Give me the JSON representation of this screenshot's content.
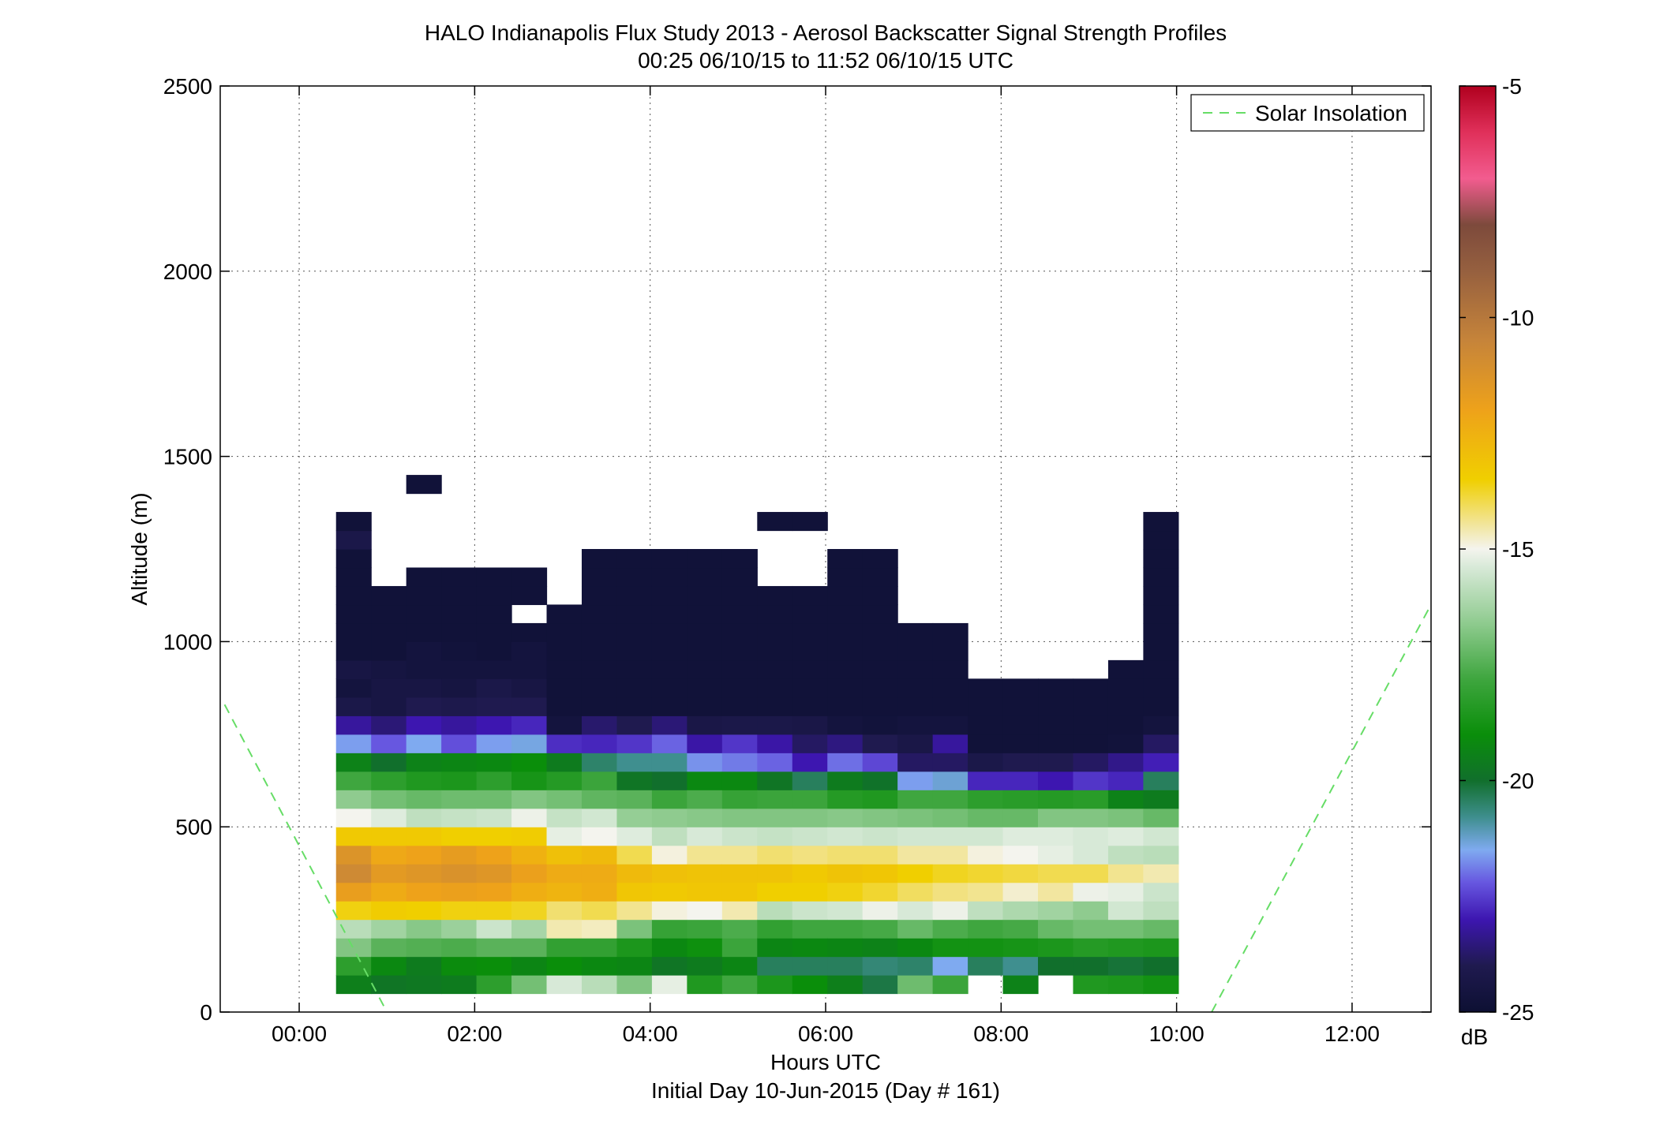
{
  "chart_data": {
    "type": "heatmap",
    "title": "HALO Indianapolis Flux Study 2013 - Aerosol Backscatter Signal Strength Profiles",
    "subtitle": "00:25 06/10/15 to 11:52 06/10/15  UTC",
    "xlabel": "Hours UTC",
    "xlabel2": "Initial Day 10-Jun-2015 (Day # 161)",
    "ylabel": "Altitude (m)",
    "x_unit": "hours UTC",
    "y_unit": "m",
    "xlim": [
      -0.9,
      12.9
    ],
    "ylim": [
      0,
      2500
    ],
    "x_ticks": [
      0,
      2,
      4,
      6,
      8,
      10,
      12
    ],
    "x_tick_labels": [
      "00:00",
      "02:00",
      "04:00",
      "06:00",
      "08:00",
      "10:00",
      "12:00"
    ],
    "y_ticks": [
      0,
      500,
      1000,
      1500,
      2000,
      2500
    ],
    "y_tick_labels": [
      "0",
      "500",
      "1000",
      "1500",
      "2000",
      "2500"
    ],
    "grid": true,
    "grid_style": "dotted",
    "legend_position": "top-right",
    "legend": [
      {
        "label": "Solar Insolation",
        "color": "#66dd66",
        "style": "dashed"
      }
    ],
    "colorbar": {
      "label": "dB",
      "min": -25,
      "max": -5,
      "ticks": [
        -25,
        -20,
        -15,
        -10,
        -5
      ],
      "tick_labels": [
        "-25",
        "-20",
        "-15",
        "-10",
        "-5"
      ],
      "stops": [
        {
          "value": -25,
          "color": "#0d1033"
        },
        {
          "value": -24,
          "color": "#1f1a4f"
        },
        {
          "value": -23,
          "color": "#3d16b0"
        },
        {
          "value": -22.2,
          "color": "#6757e0"
        },
        {
          "value": -21.5,
          "color": "#7faaf0"
        },
        {
          "value": -20.8,
          "color": "#3f8f8f"
        },
        {
          "value": -20,
          "color": "#116f2c"
        },
        {
          "value": -19,
          "color": "#0a8e0a"
        },
        {
          "value": -17.8,
          "color": "#3fa63f"
        },
        {
          "value": -16.6,
          "color": "#8fcb8f"
        },
        {
          "value": -15.4,
          "color": "#d7e9d7"
        },
        {
          "value": -15,
          "color": "#f4f4ee"
        },
        {
          "value": -14.5,
          "color": "#f2e6a0"
        },
        {
          "value": -13.5,
          "color": "#f0cf00"
        },
        {
          "value": -12,
          "color": "#eea21a"
        },
        {
          "value": -10.5,
          "color": "#c6843a"
        },
        {
          "value": -9,
          "color": "#96603f"
        },
        {
          "value": -8,
          "color": "#7d4a3c"
        },
        {
          "value": -7,
          "color": "#f25c8f"
        },
        {
          "value": -6,
          "color": "#e0305a"
        },
        {
          "value": -5,
          "color": "#b0001e"
        }
      ]
    },
    "heatmap": {
      "x_start": 0.42,
      "x_step": 0.4,
      "bin_height_m": 50,
      "bottom_m": 50,
      "columns_note": "Each profile lists dB values from the lowest altitude bin upward; null = no data.",
      "profiles": [
        [
          -19.5,
          -18.2,
          -16.8,
          -15.9,
          -13.6,
          -11.8,
          -10.8,
          -11.3,
          -13.3,
          -15.0,
          -16.6,
          -17.8,
          -19.4,
          -21.6,
          -23.2,
          -24.2,
          -24.6,
          -24.4,
          -24.8,
          -24.8,
          -24.8,
          -24.8,
          -24.8,
          -24.8,
          -24.2,
          -24.8
        ],
        [
          -19.8,
          -19.2,
          -17.4,
          -16.3,
          -13.4,
          -12.3,
          -11.6,
          -12.2,
          -13.3,
          -15.3,
          -17.0,
          -18.2,
          -20.0,
          -22.2,
          -23.6,
          -24.4,
          -24.4,
          -24.5,
          -24.8,
          -24.8,
          -24.8,
          -24.8
        ],
        [
          -19.7,
          -19.6,
          -17.5,
          -16.7,
          -13.5,
          -12.0,
          -11.4,
          -12.0,
          -13.3,
          -15.8,
          -17.2,
          -18.5,
          -19.4,
          -21.5,
          -23.0,
          -24.0,
          -24.4,
          -24.6,
          -24.6,
          -24.8,
          -24.8,
          -24.8,
          -24.8,
          null,
          null,
          null,
          null,
          -24.8
        ],
        [
          -19.6,
          -19.1,
          -17.6,
          -16.4,
          -13.6,
          -11.9,
          -11.2,
          -11.7,
          -13.5,
          -15.7,
          -17.1,
          -18.6,
          -19.3,
          -22.3,
          -23.2,
          -24.1,
          -24.5,
          -24.6,
          -24.7,
          -24.8,
          -24.8,
          -24.8,
          -24.8
        ],
        [
          -18.2,
          -19.0,
          -17.4,
          -15.6,
          -13.6,
          -12.0,
          -11.4,
          -12.0,
          -13.5,
          -15.6,
          -17.1,
          -18.2,
          -19.2,
          -21.6,
          -23.0,
          -24.0,
          -24.2,
          -24.6,
          -24.8,
          -24.8,
          -24.8,
          -24.8,
          -24.8
        ],
        [
          -17.0,
          -19.3,
          -17.4,
          -16.2,
          -13.7,
          -12.4,
          -11.9,
          -12.5,
          -13.4,
          -15.1,
          -16.8,
          -18.7,
          -19.0,
          -21.4,
          -22.8,
          -24.0,
          -24.4,
          -24.6,
          -24.6,
          -24.8,
          null,
          -24.8,
          -24.8
        ],
        [
          -15.4,
          -19.0,
          -18.1,
          -14.6,
          -14.2,
          -12.6,
          -12.3,
          -13.0,
          -15.2,
          -15.7,
          -17.0,
          -18.4,
          -19.6,
          -22.7,
          -24.6,
          -24.8,
          -24.8,
          -24.8,
          -24.8,
          -24.8,
          -24.8
        ],
        [
          -15.9,
          -19.2,
          -18.1,
          -14.7,
          -14.0,
          -12.4,
          -12.3,
          -12.8,
          -15.0,
          -15.5,
          -17.3,
          -17.9,
          -20.5,
          -22.8,
          -23.7,
          -24.8,
          -24.8,
          -24.8,
          -24.8,
          -24.8,
          -24.8,
          -24.8,
          -24.8,
          -24.8
        ],
        [
          -16.8,
          -19.3,
          -18.6,
          -16.9,
          -14.4,
          -13.2,
          -12.8,
          -14.0,
          -15.3,
          -16.5,
          -17.4,
          -19.8,
          -20.8,
          -22.6,
          -24.0,
          -24.8,
          -24.8,
          -24.8,
          -24.8,
          -24.8,
          -24.8,
          -24.8,
          -24.8,
          -24.8
        ],
        [
          -15.2,
          -19.8,
          -19.2,
          -18.0,
          -14.9,
          -13.3,
          -13.0,
          -14.9,
          -15.8,
          -16.6,
          -17.9,
          -20.0,
          -20.8,
          -22.1,
          -23.6,
          -24.8,
          -24.8,
          -24.8,
          -24.8,
          -24.8,
          -24.8,
          -24.8,
          -24.8,
          -24.8
        ],
        [
          -18.5,
          -19.6,
          -18.9,
          -17.9,
          -15.0,
          -13.2,
          -13.1,
          -14.4,
          -15.4,
          -16.7,
          -17.6,
          -19.2,
          -21.7,
          -23.1,
          -24.3,
          -24.8,
          -24.8,
          -24.8,
          -24.8,
          -24.8,
          -24.8,
          -24.8,
          -24.8,
          -24.8
        ],
        [
          -17.8,
          -19.3,
          -17.9,
          -17.6,
          -14.6,
          -13.2,
          -13.1,
          -14.4,
          -15.6,
          -16.8,
          -18.0,
          -19.2,
          -21.9,
          -22.6,
          -24.2,
          -24.8,
          -24.8,
          -24.8,
          -24.8,
          -24.8,
          -24.8,
          -24.8,
          -24.8,
          -24.8
        ],
        [
          -18.6,
          -20.4,
          -19.3,
          -18.1,
          -15.9,
          -13.5,
          -13.1,
          -14.2,
          -15.7,
          -16.8,
          -17.9,
          -19.8,
          -22.1,
          -23.1,
          -24.2,
          -24.8,
          -24.8,
          -24.8,
          -24.8,
          -24.8,
          -24.8,
          -24.8,
          null,
          null,
          null,
          -24.8
        ],
        [
          -19.0,
          -20.4,
          -19.2,
          -17.8,
          -15.6,
          -13.5,
          -13.3,
          -14.3,
          -15.6,
          -16.8,
          -17.9,
          -20.4,
          -23.0,
          -23.8,
          -24.3,
          -24.8,
          -24.8,
          -24.8,
          -24.8,
          -24.8,
          -24.8,
          -24.8,
          null,
          null,
          null,
          -24.8
        ],
        [
          -19.5,
          -20.4,
          -19.3,
          -17.8,
          -15.5,
          -13.6,
          -13.1,
          -14.2,
          -15.5,
          -16.7,
          -18.4,
          -19.6,
          -22.0,
          -23.5,
          -24.6,
          -24.8,
          -24.8,
          -24.8,
          -24.8,
          -24.8,
          -24.8,
          -24.8,
          -24.8,
          -24.8
        ],
        [
          -20.2,
          -20.6,
          -19.4,
          -17.7,
          -15.1,
          -13.8,
          -13.2,
          -14.2,
          -15.6,
          -16.8,
          -18.5,
          -19.9,
          -22.4,
          -24.0,
          -24.7,
          -24.8,
          -24.8,
          -24.8,
          -24.8,
          -24.8,
          -24.8,
          -24.8,
          -24.8,
          -24.8
        ],
        [
          -17.1,
          -20.5,
          -19.2,
          -17.2,
          -15.4,
          -14.1,
          -13.5,
          -14.5,
          -15.5,
          -16.9,
          -17.8,
          -21.6,
          -23.8,
          -24.3,
          -24.6,
          -24.8,
          -24.8,
          -24.8,
          -24.8,
          -24.8
        ],
        [
          -17.9,
          -21.5,
          -18.8,
          -17.6,
          -15.1,
          -14.3,
          -13.7,
          -14.5,
          -15.5,
          -17.0,
          -17.8,
          -21.3,
          -23.8,
          -23.2,
          -24.6,
          -24.8,
          -24.8,
          -24.8,
          -24.8,
          -24.8
        ],
        [
          null,
          -20.4,
          -18.8,
          -17.8,
          -15.8,
          -14.4,
          -13.8,
          -14.9,
          -15.5,
          -17.2,
          -18.2,
          -22.8,
          -24.2,
          -24.8,
          -24.8,
          -24.8,
          -24.8
        ],
        [
          -19.4,
          -20.8,
          -18.7,
          -17.7,
          -16.1,
          -14.8,
          -13.9,
          -15.0,
          -15.3,
          -17.2,
          -18.3,
          -22.8,
          -24.0,
          -24.8,
          -24.8,
          -24.8,
          -24.8
        ],
        [
          null,
          -20.0,
          -18.6,
          -17.2,
          -16.3,
          -14.5,
          -14.0,
          -15.2,
          -15.3,
          -16.8,
          -18.4,
          -23.0,
          -24.0,
          -24.8,
          -24.8,
          -24.8,
          -24.8
        ],
        [
          -18.5,
          -20.0,
          -18.4,
          -17.0,
          -16.6,
          -15.1,
          -14.0,
          -15.4,
          -15.4,
          -16.8,
          -18.3,
          -22.6,
          -23.8,
          -24.8,
          -24.8,
          -24.8,
          -24.8
        ],
        [
          -18.6,
          -20.1,
          -18.5,
          -17.0,
          -15.5,
          -15.2,
          -14.4,
          -15.8,
          -15.3,
          -16.9,
          -19.4,
          -22.8,
          -23.4,
          -24.7,
          -24.8,
          -24.8,
          -24.8,
          -24.8
        ],
        [
          -18.8,
          -20.0,
          -18.6,
          -17.2,
          -15.8,
          -15.6,
          -14.6,
          -15.9,
          -15.5,
          -17.2,
          -19.6,
          -20.4,
          -22.9,
          -23.8,
          -24.6,
          -24.8,
          -24.8,
          -24.8,
          -24.8,
          -24.8,
          -24.8,
          -24.8,
          -24.8,
          -24.8,
          -24.8,
          -24.8
        ]
      ]
    }
  }
}
